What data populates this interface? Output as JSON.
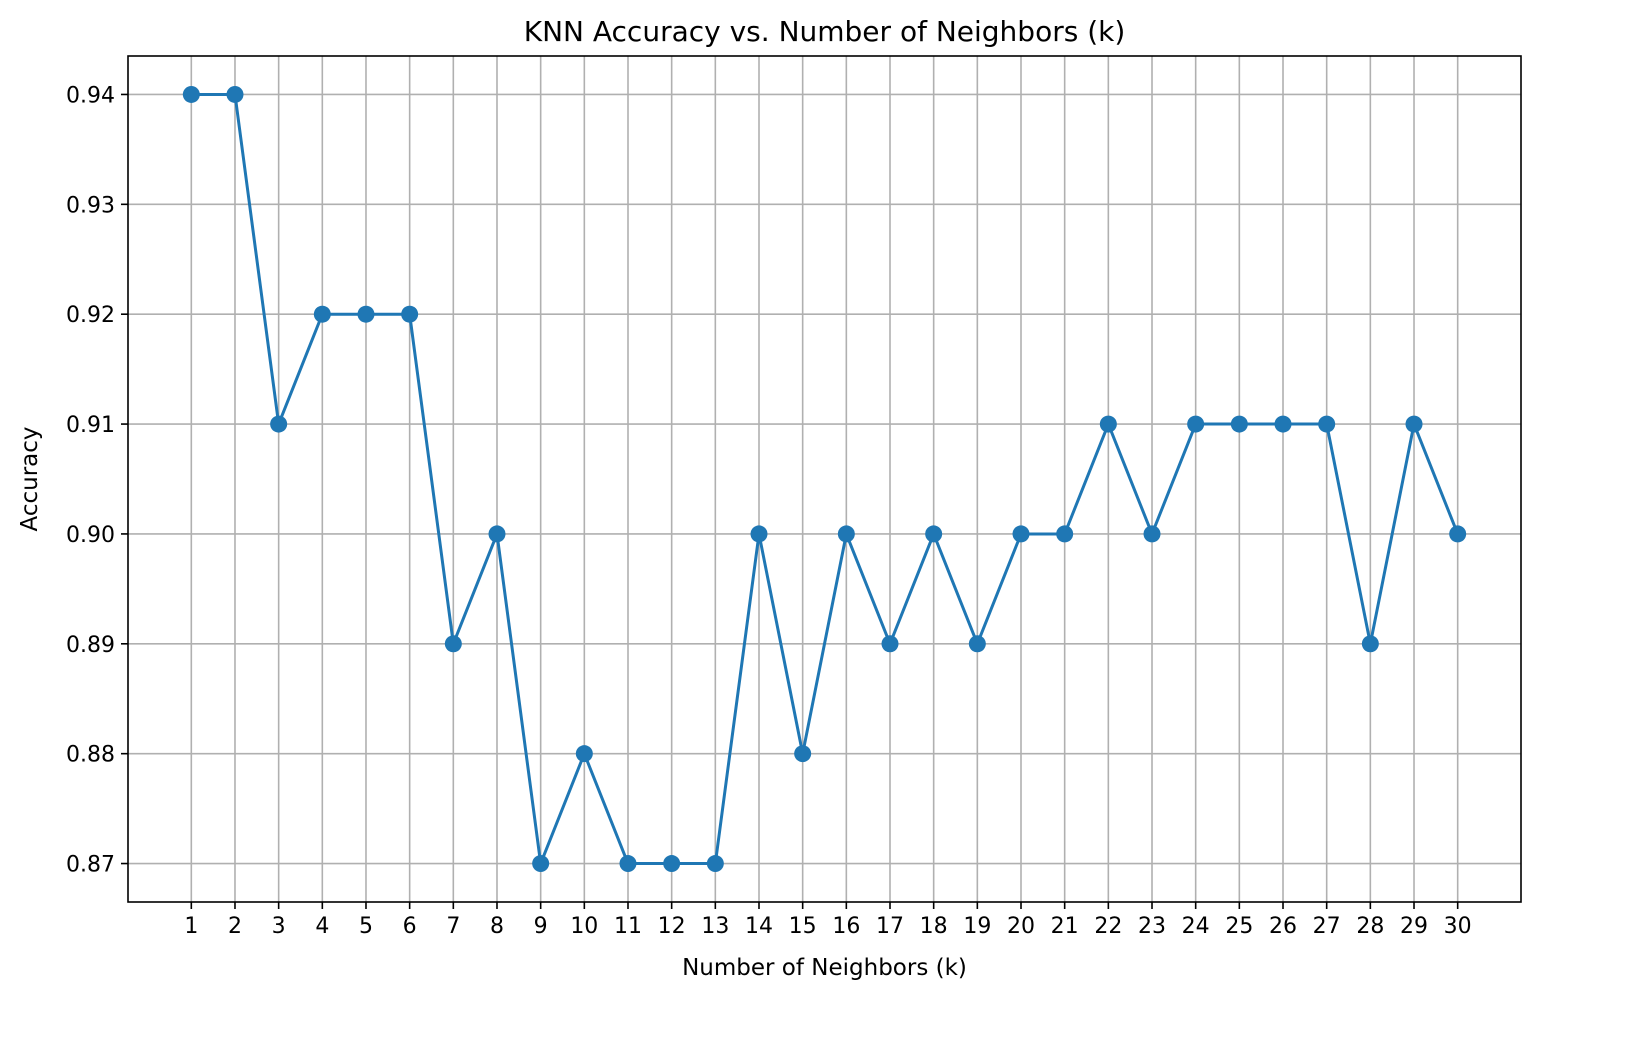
{
  "chart_data": {
    "type": "line",
    "title": "KNN Accuracy vs. Number of Neighbors (k)",
    "xlabel": "Number of Neighbors (k)",
    "ylabel": "Accuracy",
    "x": [
      1,
      2,
      3,
      4,
      5,
      6,
      7,
      8,
      9,
      10,
      11,
      12,
      13,
      14,
      15,
      16,
      17,
      18,
      19,
      20,
      21,
      22,
      23,
      24,
      25,
      26,
      27,
      28,
      29,
      30
    ],
    "x_tick_labels": [
      "1",
      "2",
      "3",
      "4",
      "5",
      "6",
      "7",
      "8",
      "9",
      "10",
      "11",
      "12",
      "13",
      "14",
      "15",
      "16",
      "17",
      "18",
      "19",
      "20",
      "21",
      "22",
      "23",
      "24",
      "25",
      "26",
      "27",
      "28",
      "29",
      "30"
    ],
    "series": [
      {
        "values": [
          0.94,
          0.94,
          0.91,
          0.92,
          0.92,
          0.92,
          0.89,
          0.9,
          0.87,
          0.88,
          0.87,
          0.87,
          0.87,
          0.9,
          0.88,
          0.9,
          0.89,
          0.9,
          0.89,
          0.9,
          0.9,
          0.91,
          0.9,
          0.91,
          0.91,
          0.91,
          0.91,
          0.89,
          0.91,
          0.9
        ],
        "color": "#1f77b4",
        "marker": "circle"
      }
    ],
    "y_ticks": [
      0.87,
      0.88,
      0.89,
      0.9,
      0.91,
      0.92,
      0.93,
      0.94
    ],
    "y_tick_labels": [
      "0.87",
      "0.88",
      "0.89",
      "0.90",
      "0.91",
      "0.92",
      "0.93",
      "0.94"
    ],
    "xlim": [
      -0.45,
      31.45
    ],
    "ylim": [
      0.8665,
      0.9435
    ],
    "grid": true,
    "legend": "none"
  }
}
